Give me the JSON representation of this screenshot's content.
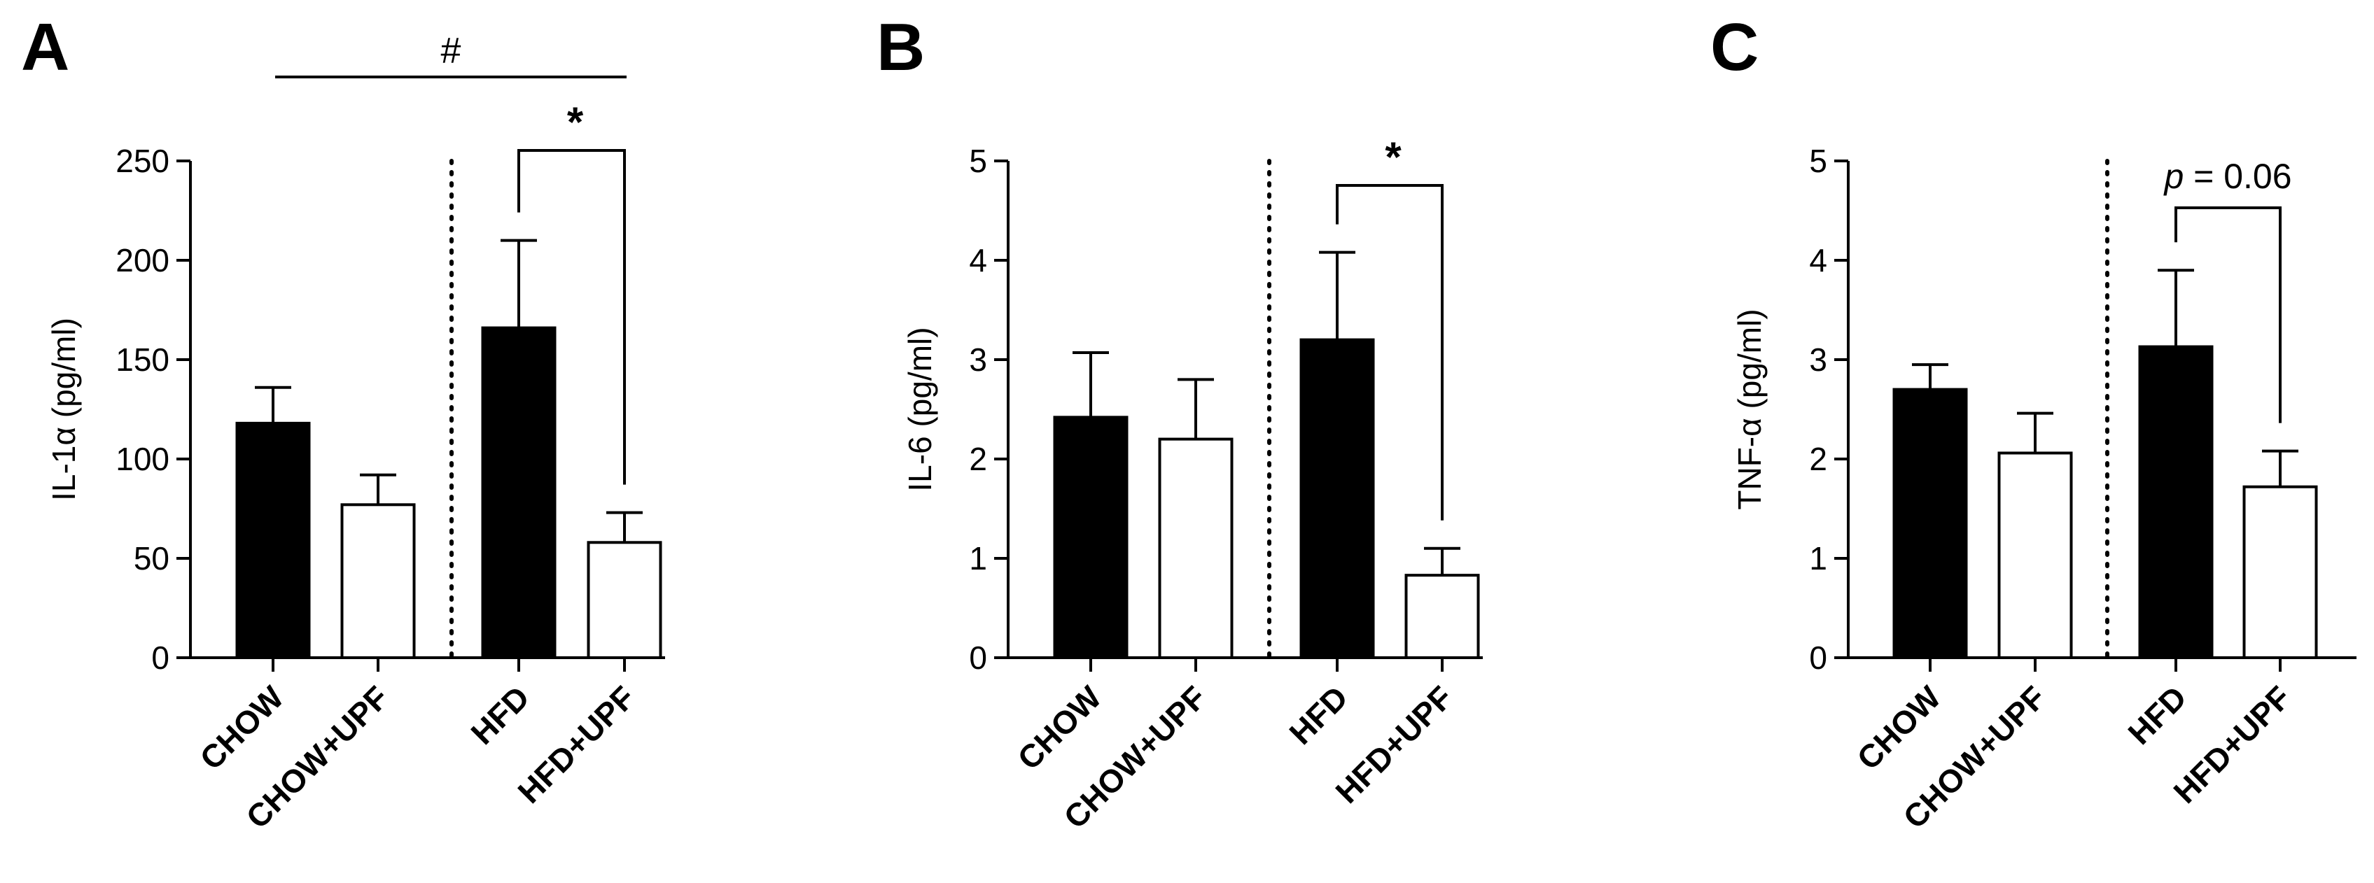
{
  "chart_data": [
    {
      "panel": "A",
      "type": "bar",
      "categories": [
        "CHOW",
        "CHOW+UPF",
        "HFD",
        "HFD+UPF"
      ],
      "values": [
        118,
        77,
        166,
        58
      ],
      "errors": [
        18,
        15,
        44,
        15
      ],
      "fills": [
        "#000000",
        "#ffffff",
        "#000000",
        "#ffffff"
      ],
      "ylabel": "IL-1α (pg/ml)",
      "ylim": [
        0,
        250
      ],
      "yticks": [
        "0",
        "50",
        "100",
        "150",
        "200",
        "250"
      ],
      "group_separator_after": 1,
      "annotations": [
        {
          "text": "#",
          "from": 0,
          "to": 3,
          "style": "line"
        },
        {
          "text": "*",
          "from": 2,
          "to": 3,
          "style": "bracket"
        }
      ]
    },
    {
      "panel": "B",
      "type": "bar",
      "categories": [
        "CHOW",
        "CHOW+UPF",
        "HFD",
        "HFD+UPF"
      ],
      "values": [
        2.42,
        2.2,
        3.2,
        0.83
      ],
      "errors": [
        0.65,
        0.6,
        0.88,
        0.27
      ],
      "fills": [
        "#000000",
        "#ffffff",
        "#000000",
        "#ffffff"
      ],
      "ylabel": "IL-6 (pg/ml)",
      "ylim": [
        0,
        5
      ],
      "yticks": [
        "0",
        "1",
        "2",
        "3",
        "4",
        "5"
      ],
      "group_separator_after": 1,
      "annotations": [
        {
          "text": "*",
          "from": 2,
          "to": 3,
          "style": "bracket"
        }
      ]
    },
    {
      "panel": "C",
      "type": "bar",
      "categories": [
        "CHOW",
        "CHOW+UPF",
        "HFD",
        "HFD+UPF"
      ],
      "values": [
        2.7,
        2.06,
        3.13,
        1.72
      ],
      "errors": [
        0.25,
        0.4,
        0.77,
        0.36
      ],
      "fills": [
        "#000000",
        "#ffffff",
        "#000000",
        "#ffffff"
      ],
      "ylabel": "TNF-α (pg/ml)",
      "ylim": [
        0,
        5
      ],
      "yticks": [
        "0",
        "1",
        "2",
        "3",
        "4",
        "5"
      ],
      "group_separator_after": 1,
      "annotations": [
        {
          "text_italic": "p",
          "text": " = 0.06",
          "from": 2,
          "to": 3,
          "style": "bracket"
        }
      ]
    }
  ]
}
